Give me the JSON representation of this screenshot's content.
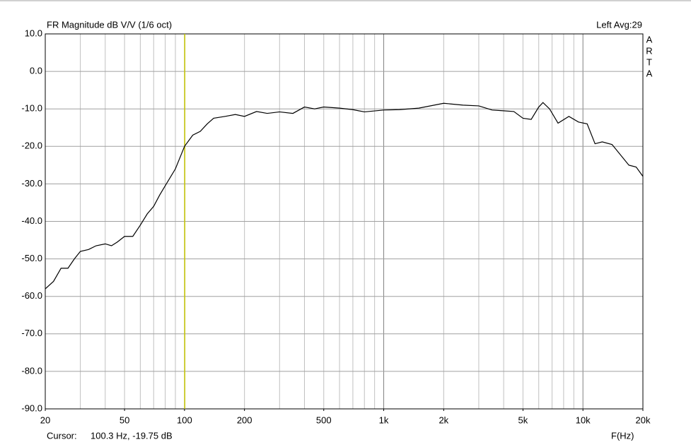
{
  "chart_data": {
    "type": "line",
    "title": "FR Magnitude dB V/V (1/6 oct)",
    "legend_text": "Left  Avg:29",
    "side_label": [
      "A",
      "R",
      "T",
      "A"
    ],
    "xlabel": "F(Hz)",
    "cursor_label": "Cursor:",
    "cursor_text": "100.3 Hz, -19.75 dB",
    "cursor": {
      "x": 100.3,
      "y": -19.75,
      "color": "#c8c800"
    },
    "xscale": "log",
    "xlim": [
      20,
      20000
    ],
    "xticks": [
      20,
      50,
      100,
      200,
      500,
      {
        "value": 1000,
        "label": "1k"
      },
      {
        "value": 2000,
        "label": "2k"
      },
      {
        "value": 5000,
        "label": "5k"
      },
      {
        "value": 10000,
        "label": "10k"
      },
      {
        "value": 20000,
        "label": "20k"
      }
    ],
    "xgrid": [
      30,
      40,
      50,
      60,
      70,
      80,
      90,
      100,
      200,
      300,
      400,
      500,
      600,
      700,
      800,
      900,
      1000,
      2000,
      3000,
      4000,
      5000,
      6000,
      7000,
      8000,
      9000,
      10000
    ],
    "xgrid_major": [
      100,
      1000,
      10000
    ],
    "ylim": [
      -90,
      10
    ],
    "yticks": [
      {
        "value": 10,
        "label": "10.0"
      },
      {
        "value": 0,
        "label": "0.0"
      },
      {
        "value": -10,
        "label": "-10.0"
      },
      {
        "value": -20,
        "label": "-20.0"
      },
      {
        "value": -30,
        "label": "-30.0"
      },
      {
        "value": -40,
        "label": "-40.0"
      },
      {
        "value": -50,
        "label": "-50.0"
      },
      {
        "value": -60,
        "label": "-60.0"
      },
      {
        "value": -70,
        "label": "-70.0"
      },
      {
        "value": -80,
        "label": "-80.0"
      },
      {
        "value": -90,
        "label": "-90.0"
      }
    ],
    "grid": true,
    "series": [
      {
        "name": "Left",
        "color": "#000000",
        "x": [
          20,
          22,
          24,
          26,
          28,
          30,
          33,
          36,
          40,
          43,
          46,
          50,
          55,
          60,
          65,
          70,
          75,
          80,
          90,
          100,
          110,
          120,
          130,
          140,
          160,
          180,
          200,
          230,
          260,
          300,
          350,
          400,
          450,
          500,
          600,
          700,
          800,
          1000,
          1200,
          1500,
          2000,
          2500,
          3000,
          3500,
          4000,
          4500,
          5000,
          5500,
          6000,
          6300,
          6800,
          7500,
          8500,
          9500,
          10500,
          11500,
          12500,
          14000,
          17000,
          18500,
          20000
        ],
        "values": [
          -58,
          -56,
          -52.5,
          -52.5,
          -50,
          -48,
          -47.5,
          -46.5,
          -46,
          -46.5,
          -45.5,
          -44,
          -44,
          -41,
          -38,
          -36,
          -33,
          -30.5,
          -26,
          -20,
          -17,
          -16,
          -14,
          -12.5,
          -12,
          -11.5,
          -12,
          -10.7,
          -11.2,
          -10.8,
          -11.2,
          -9.5,
          -10,
          -9.5,
          -9.8,
          -10.2,
          -10.8,
          -10.3,
          -10.2,
          -9.8,
          -8.5,
          -9,
          -9.2,
          -10.3,
          -10.5,
          -10.7,
          -12.5,
          -12.8,
          -9.5,
          -8.3,
          -10,
          -13.8,
          -12,
          -13.5,
          -14,
          -19.3,
          -18.8,
          -19.5,
          -25,
          -25.5,
          -28
        ]
      }
    ]
  }
}
